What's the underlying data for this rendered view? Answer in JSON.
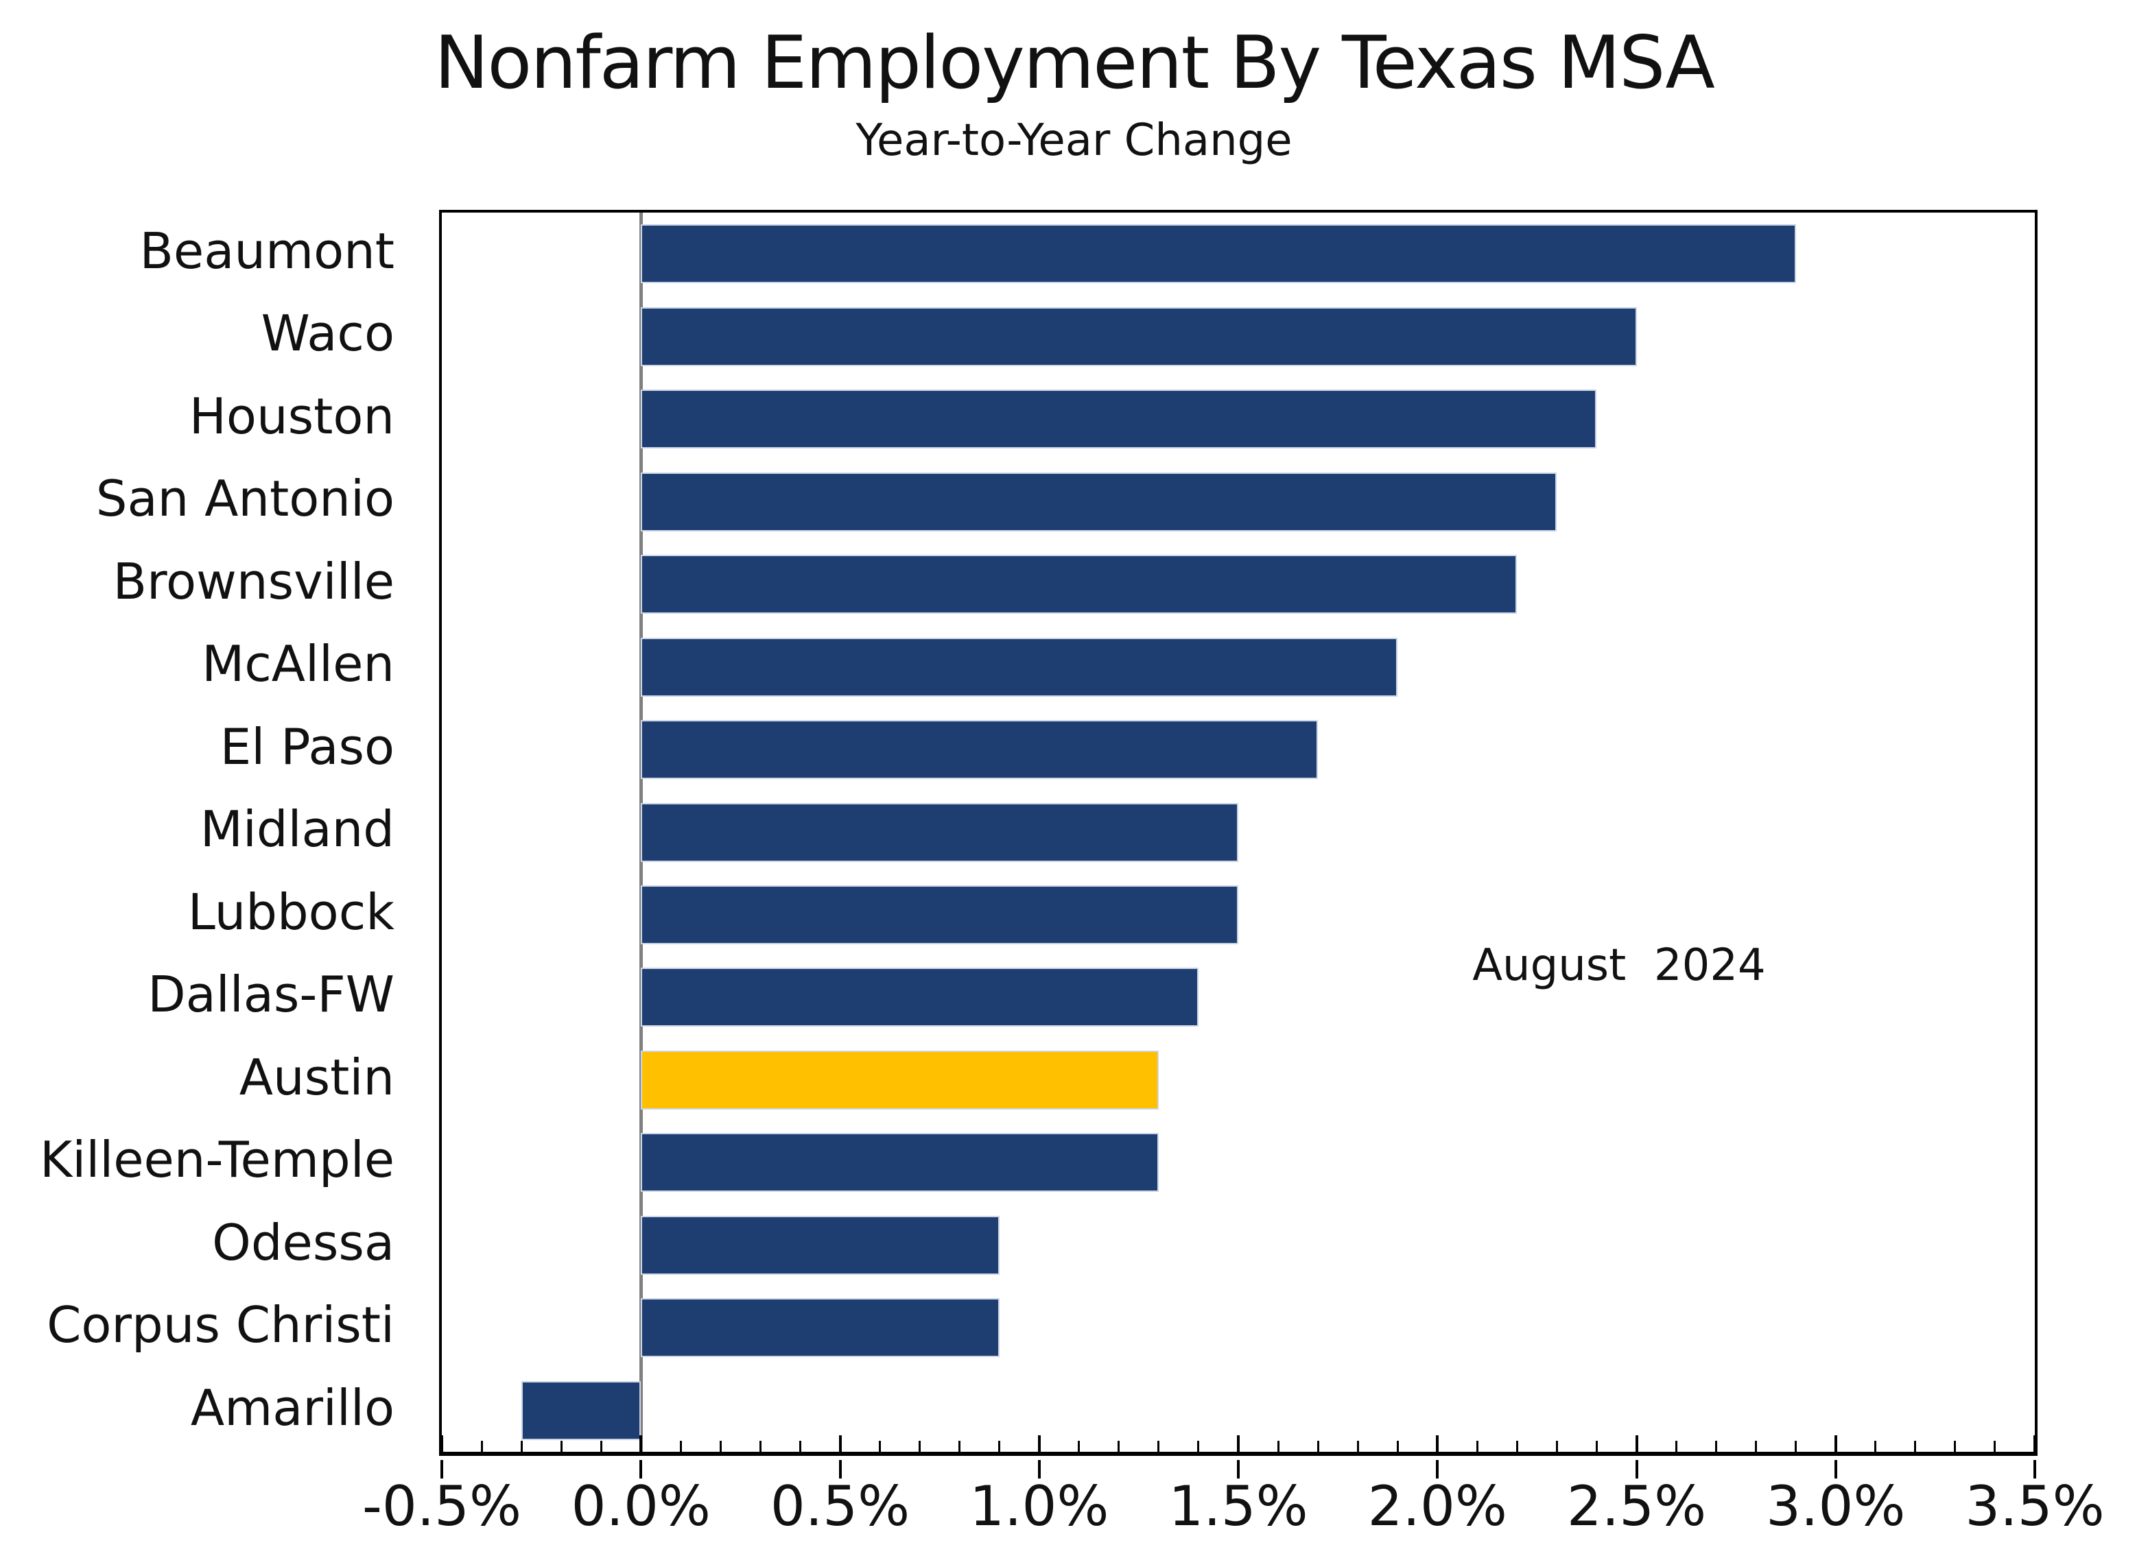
{
  "chart_data": {
    "type": "bar",
    "orientation": "horizontal",
    "title": "Nonfarm Employment By Texas MSA",
    "subtitle": "Year-to-Year Change",
    "annotation": "August  2024",
    "unit": "%",
    "categories": [
      "Beaumont",
      "Waco",
      "Houston",
      "San Antonio",
      "Brownsville",
      "McAllen",
      "El Paso",
      "Midland",
      "Lubbock",
      "Dallas-FW",
      "Austin",
      "Killeen-Temple",
      "Odessa",
      "Corpus Christi",
      "Amarillo"
    ],
    "values": [
      2.9,
      2.5,
      2.4,
      2.3,
      2.2,
      1.9,
      1.7,
      1.5,
      1.5,
      1.4,
      1.3,
      1.3,
      0.9,
      0.9,
      -0.3
    ],
    "highlighted_category": "Austin",
    "xlim": [
      -0.5,
      3.5
    ],
    "x_major_ticks": [
      -0.5,
      0,
      0.5,
      1,
      1.5,
      2,
      2.5,
      3,
      3.5
    ],
    "x_tick_labels": [
      "-0.5%",
      "0.0%",
      "0.5%",
      "1.0%",
      "1.5%",
      "2.0%",
      "2.5%",
      "3.0%",
      "3.5%"
    ],
    "x_minor_step": 0.1,
    "grid": false,
    "legend": false,
    "colors": {
      "bar": "#1E3E72",
      "highlight": "#FFC000",
      "zero_line": "#808080",
      "frame": "#000000",
      "text": "#111111"
    }
  }
}
